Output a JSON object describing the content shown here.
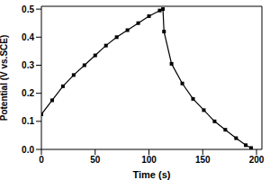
{
  "chart_data": {
    "type": "line",
    "x_label": "Time (s)",
    "y_label": "Potential (V vs.SCE)",
    "x": [
      0,
      10,
      20,
      30,
      40,
      50,
      60,
      70,
      80,
      90,
      100,
      110,
      113,
      114,
      121,
      131,
      141,
      151,
      161,
      171,
      181,
      190,
      195
    ],
    "values": [
      0.125,
      0.175,
      0.225,
      0.265,
      0.3,
      0.335,
      0.37,
      0.4,
      0.425,
      0.45,
      0.475,
      0.495,
      0.5,
      0.42,
      0.305,
      0.235,
      0.18,
      0.14,
      0.1,
      0.07,
      0.04,
      0.015,
      0.005
    ],
    "color": "#000000",
    "marker": "square",
    "xlim": [
      0,
      205
    ],
    "ylim": [
      0,
      0.51
    ],
    "xticks": [
      0,
      50,
      100,
      150,
      200
    ],
    "yticks": [
      {
        "value": 0,
        "label": "0.0"
      },
      0.1,
      0.2,
      0.3,
      0.4,
      0.5
    ],
    "grid": false
  }
}
